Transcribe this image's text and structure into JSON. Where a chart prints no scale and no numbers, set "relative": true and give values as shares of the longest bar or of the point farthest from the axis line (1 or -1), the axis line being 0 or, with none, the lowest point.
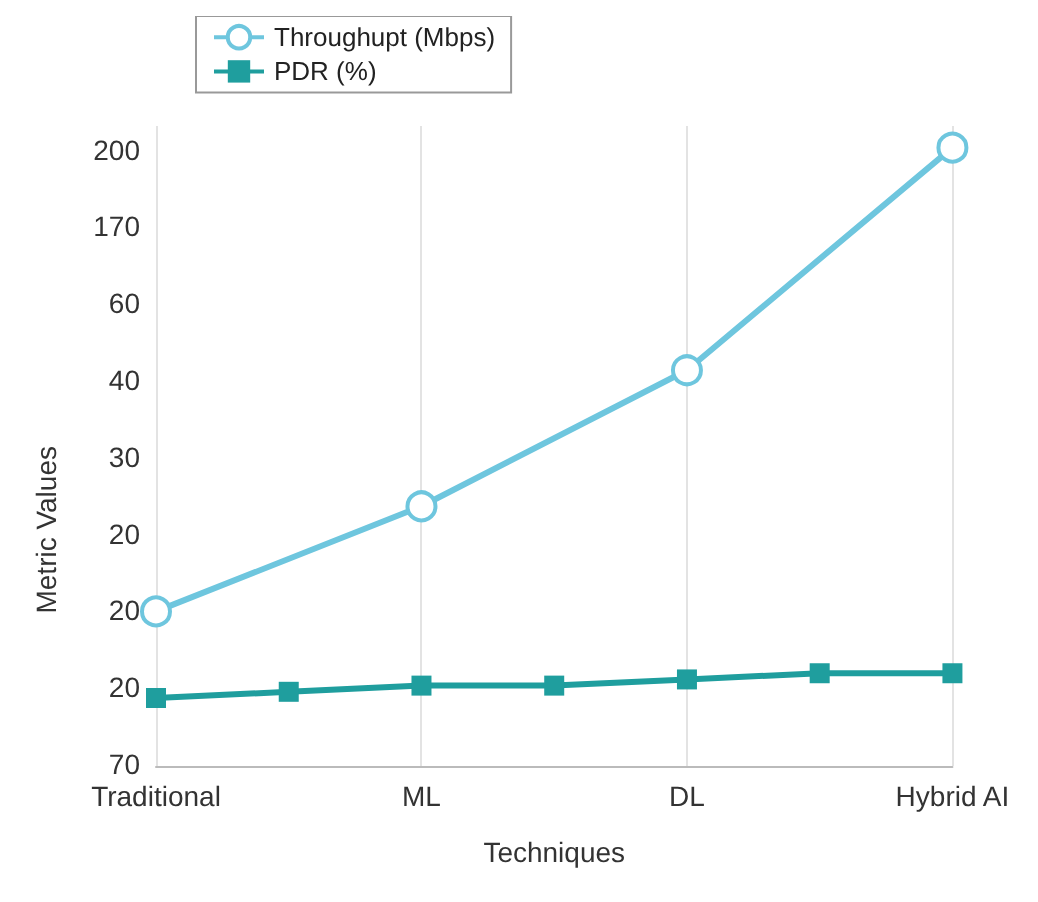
{
  "chart_data": {
    "type": "line",
    "xlabel": "Techniques",
    "ylabel": "Metric Values",
    "relative": true,
    "categories": [
      "Traditional",
      null,
      "ML",
      null,
      "DL",
      null,
      "Hybrid AI"
    ],
    "series": [
      {
        "name": "Throughupt (Mbps)",
        "color": "#6ec6de",
        "marker": "circle",
        "values": [
          0.25,
          null,
          0.42,
          null,
          0.64,
          null,
          1
        ]
      },
      {
        "name": "PDR (%)",
        "color": "#1f9e9e",
        "marker": "square",
        "values": [
          0.11,
          0.12,
          0.13,
          0.13,
          0.14,
          0.15,
          0.15
        ]
      }
    ],
    "annotations": [
      "70",
      "20",
      "20",
      "20",
      "30",
      "40",
      "60",
      "170",
      "200"
    ],
    "grid": "x",
    "legend": "top left",
    "line_style": "solid"
  }
}
